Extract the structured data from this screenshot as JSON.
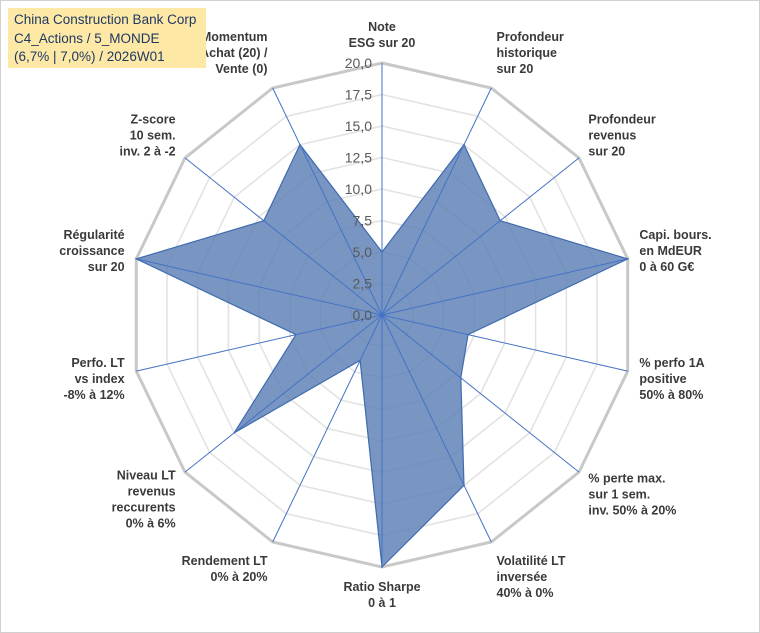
{
  "title_box": {
    "line1": "China Construction Bank Corp",
    "line2": "C4_Actions / 5_MONDE",
    "line3": "(6,7% | 7,0%) / 2026W01"
  },
  "chart_data": {
    "type": "radar",
    "axis_range": [
      0,
      20
    ],
    "tick_step": 2.5,
    "tick_labels": [
      "0,0",
      "2,5",
      "5,0",
      "7,5",
      "10,0",
      "12,5",
      "15,0",
      "17,5",
      "20,0"
    ],
    "axes": [
      {
        "label": [
          "Note",
          "ESG sur 20"
        ],
        "value": 5.0
      },
      {
        "label": [
          "Profondeur",
          "historique",
          "sur 20"
        ],
        "value": 15.0
      },
      {
        "label": [
          "Profondeur",
          "revenus",
          "sur 20"
        ],
        "value": 12.0
      },
      {
        "label": [
          "Capi. bours.",
          "en MdEUR",
          "0 à 60 G€"
        ],
        "value": 20.0
      },
      {
        "label": [
          "% perfo 1A",
          "positive",
          "50% à 80%"
        ],
        "value": 7.0
      },
      {
        "label": [
          "% perte max.",
          "sur 1 sem.",
          "inv. 50% à 20%"
        ],
        "value": 8.0
      },
      {
        "label": [
          "Volatilité LT",
          "inversée",
          "40% à 0%"
        ],
        "value": 15.0
      },
      {
        "label": [
          "Ratio Sharpe",
          "0 à 1"
        ],
        "value": 20.0
      },
      {
        "label": [
          "Rendement LT",
          "0% à 20%"
        ],
        "value": 4.0
      },
      {
        "label": [
          "Niveau LT",
          "revenus",
          "reccurents",
          "0% à 6%"
        ],
        "value": 15.0
      },
      {
        "label": [
          "Perfo. LT",
          "vs index",
          "-8% à 12%"
        ],
        "value": 7.0
      },
      {
        "label": [
          "Régularité",
          "croissance",
          "sur 20"
        ],
        "value": 20.0
      },
      {
        "label": [
          "Z-score",
          "10 sem.",
          "inv. 2 à -2"
        ],
        "value": 12.0
      },
      {
        "label": [
          "Momentum",
          "Achat (20) /",
          "Vente (0)"
        ],
        "value": 15.0
      }
    ],
    "colors": {
      "fill": "#5b7fb5",
      "stroke": "#3f6bb0",
      "spoke": "#4472c4",
      "outer_ring": "#c8c8c8",
      "grid_ring": "#e3e3e3"
    }
  }
}
